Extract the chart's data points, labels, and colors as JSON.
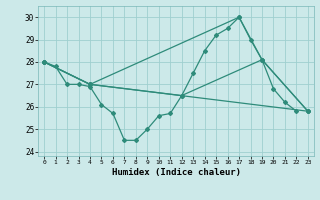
{
  "xlabel": "Humidex (Indice chaleur)",
  "xlim": [
    -0.5,
    23.5
  ],
  "ylim": [
    23.8,
    30.5
  ],
  "yticks": [
    24,
    25,
    26,
    27,
    28,
    29,
    30
  ],
  "xticks": [
    0,
    1,
    2,
    3,
    4,
    5,
    6,
    7,
    8,
    9,
    10,
    11,
    12,
    13,
    14,
    15,
    16,
    17,
    18,
    19,
    20,
    21,
    22,
    23
  ],
  "bg_color": "#cce9e9",
  "line_color": "#2e8b7a",
  "grid_color": "#9fcfcf",
  "series1": [
    [
      0,
      28.0
    ],
    [
      1,
      27.8
    ],
    [
      2,
      27.0
    ],
    [
      3,
      27.0
    ],
    [
      4,
      26.9
    ],
    [
      5,
      26.1
    ],
    [
      6,
      25.7
    ],
    [
      7,
      24.5
    ],
    [
      8,
      24.5
    ],
    [
      9,
      25.0
    ],
    [
      10,
      25.6
    ],
    [
      11,
      25.7
    ],
    [
      12,
      26.5
    ],
    [
      13,
      27.5
    ],
    [
      14,
      28.5
    ],
    [
      15,
      29.2
    ],
    [
      16,
      29.5
    ],
    [
      17,
      30.0
    ],
    [
      18,
      29.0
    ],
    [
      19,
      28.1
    ],
    [
      20,
      26.8
    ],
    [
      21,
      26.2
    ],
    [
      22,
      25.8
    ]
  ],
  "series2": [
    [
      0,
      28.0
    ],
    [
      4,
      27.0
    ],
    [
      23,
      25.8
    ]
  ],
  "series3": [
    [
      0,
      28.0
    ],
    [
      4,
      27.0
    ],
    [
      17,
      30.0
    ],
    [
      19,
      28.1
    ],
    [
      23,
      25.8
    ]
  ],
  "series4": [
    [
      0,
      28.0
    ],
    [
      4,
      27.0
    ],
    [
      12,
      26.5
    ],
    [
      19,
      28.1
    ],
    [
      23,
      25.8
    ]
  ]
}
